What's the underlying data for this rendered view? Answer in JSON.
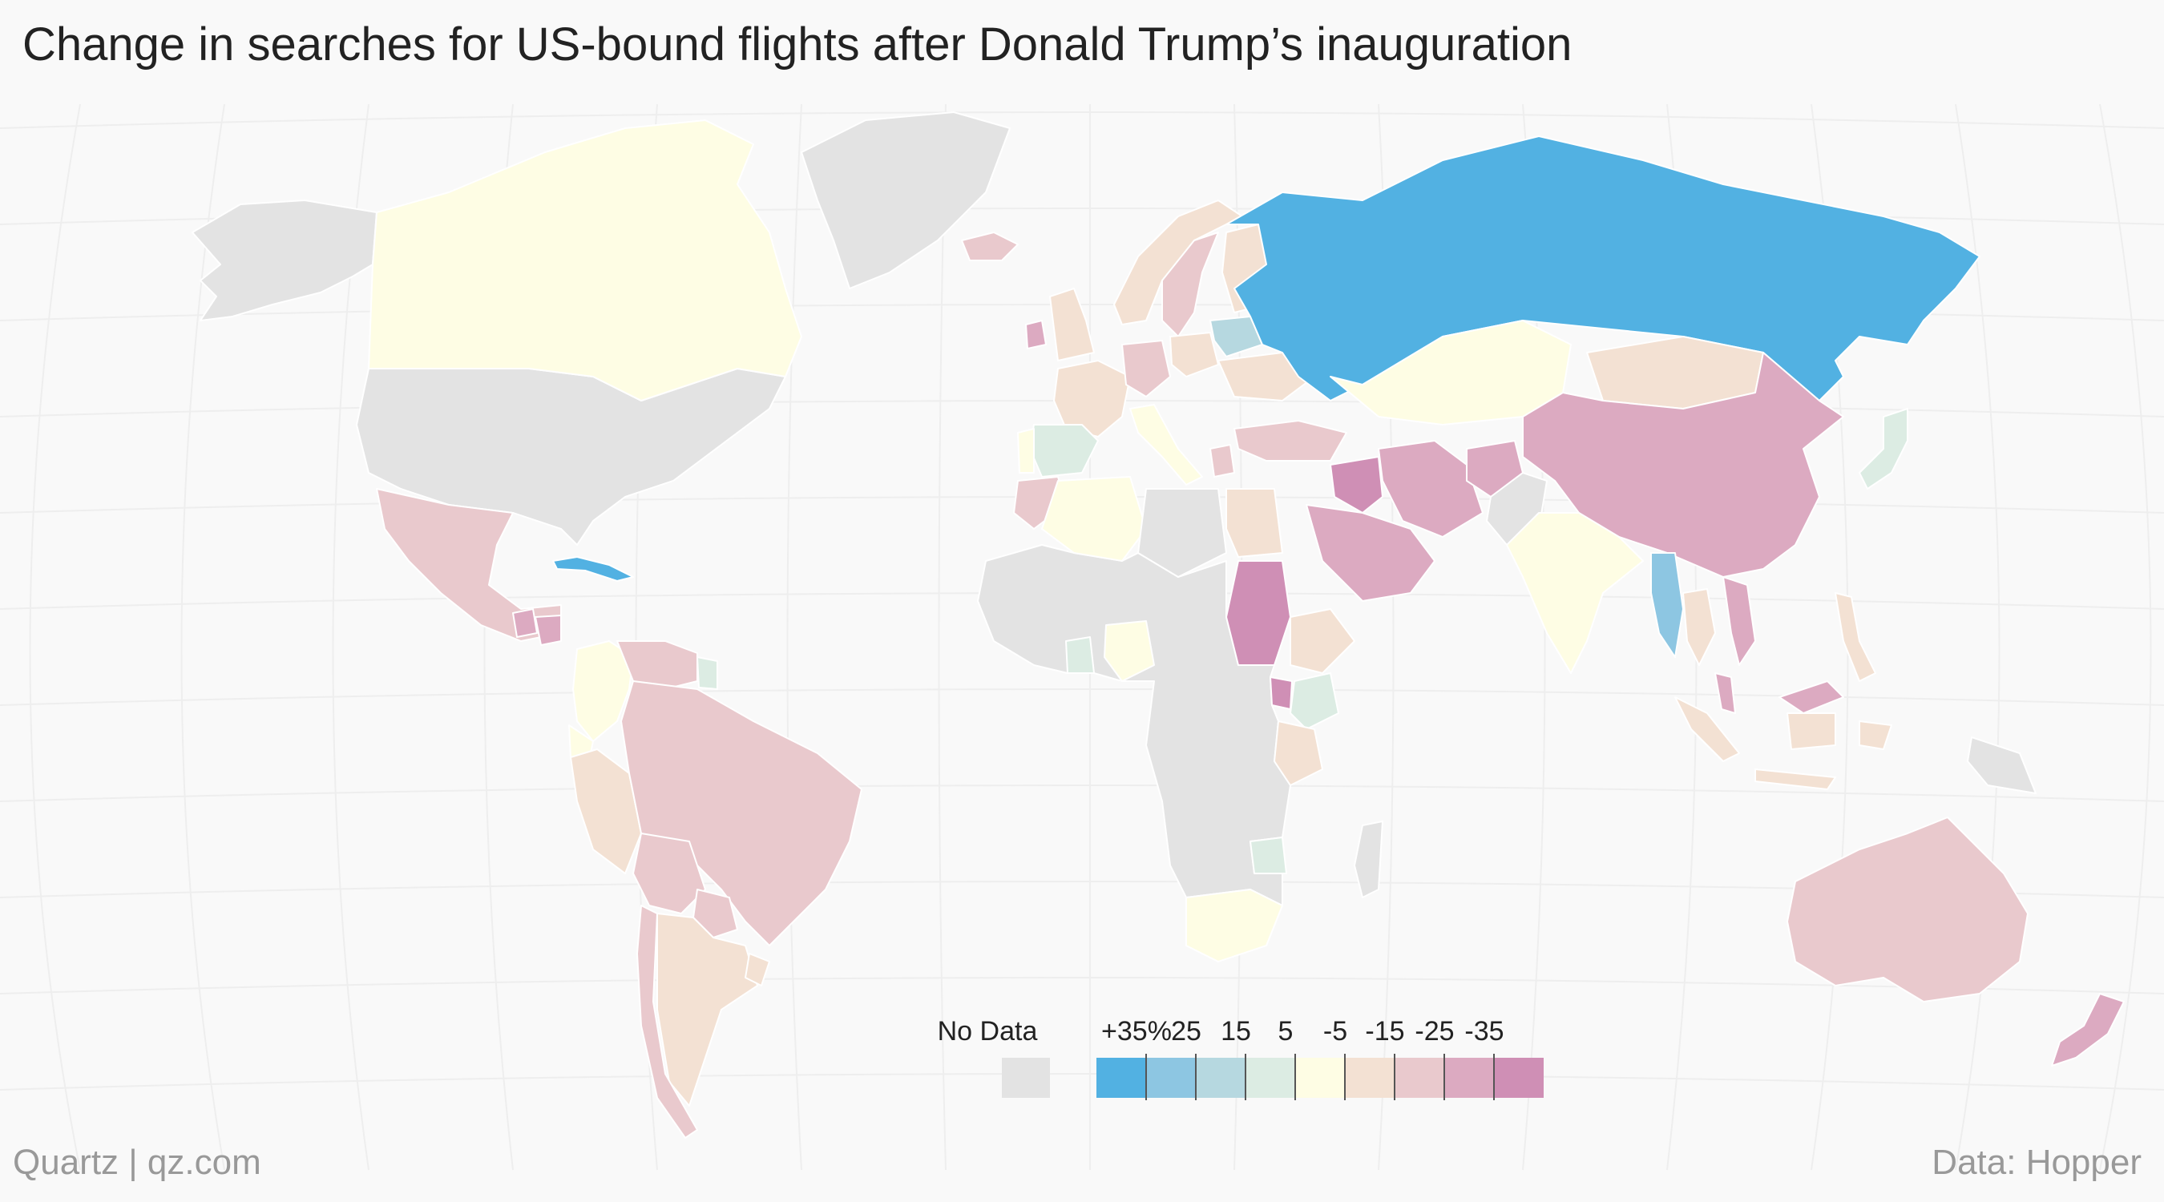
{
  "title": "Change in searches for US-bound flights after Donald Trump’s inauguration",
  "footer": {
    "left": "Quartz | qz.com",
    "right": "Data: Hopper"
  },
  "legend": {
    "no_data_label": "No Data",
    "no_data_color": "#e3e3e3",
    "bins": [
      {
        "label": "+35%",
        "color": "#52b1e2"
      },
      {
        "label": "25",
        "color": "#8dc6e2"
      },
      {
        "label": "15",
        "color": "#b6d8e0"
      },
      {
        "label": "5",
        "color": "#dcece3"
      },
      {
        "label": "-5",
        "color": "#fefde4"
      },
      {
        "label": "-15",
        "color": "#f3e1d3"
      },
      {
        "label": "-25",
        "color": "#e9c9cd"
      },
      {
        "label": "-35",
        "color": "#dcaac1"
      },
      {
        "label": "",
        "color": "#cf8fb5"
      }
    ]
  },
  "colors": {
    "background": "#f9f9f9",
    "ocean_grid": "#eeeeee",
    "border": "#ffffff"
  },
  "chart_data": {
    "type": "choropleth",
    "metric": "Change in searches for US-bound flights (%)",
    "regions": [
      {
        "name": "Alaska",
        "bin": "No Data"
      },
      {
        "name": "United States",
        "bin": "No Data"
      },
      {
        "name": "Greenland",
        "bin": "No Data"
      },
      {
        "name": "Canada",
        "bin": "-5"
      },
      {
        "name": "Mexico",
        "bin": "-25"
      },
      {
        "name": "Cuba",
        "bin": "+35%"
      },
      {
        "name": "Guatemala",
        "bin": "-35"
      },
      {
        "name": "Honduras",
        "bin": "-35"
      },
      {
        "name": "Colombia",
        "bin": "-5"
      },
      {
        "name": "Venezuela",
        "bin": "-25"
      },
      {
        "name": "Guyana",
        "bin": "5"
      },
      {
        "name": "Ecuador",
        "bin": "-5"
      },
      {
        "name": "Peru",
        "bin": "-15"
      },
      {
        "name": "Brazil",
        "bin": "-25"
      },
      {
        "name": "Bolivia",
        "bin": "-25"
      },
      {
        "name": "Paraguay",
        "bin": "-25"
      },
      {
        "name": "Argentina",
        "bin": "-15"
      },
      {
        "name": "Chile",
        "bin": "-25"
      },
      {
        "name": "Uruguay",
        "bin": "-15"
      },
      {
        "name": "Iceland",
        "bin": "-25"
      },
      {
        "name": "Ireland",
        "bin": "-35"
      },
      {
        "name": "United Kingdom",
        "bin": "-15"
      },
      {
        "name": "Norway",
        "bin": "-15"
      },
      {
        "name": "Sweden",
        "bin": "-25"
      },
      {
        "name": "Finland",
        "bin": "-15"
      },
      {
        "name": "France",
        "bin": "-15"
      },
      {
        "name": "Spain",
        "bin": "5"
      },
      {
        "name": "Portugal",
        "bin": "-5"
      },
      {
        "name": "Germany",
        "bin": "-25"
      },
      {
        "name": "Poland",
        "bin": "-15"
      },
      {
        "name": "Belarus",
        "bin": "15"
      },
      {
        "name": "Ukraine",
        "bin": "-15"
      },
      {
        "name": "Italy",
        "bin": "-5"
      },
      {
        "name": "Greece",
        "bin": "-25"
      },
      {
        "name": "Turkey",
        "bin": "-25"
      },
      {
        "name": "Russia",
        "bin": "+35%"
      },
      {
        "name": "Kazakhstan",
        "bin": "-5"
      },
      {
        "name": "Mongolia",
        "bin": "-15"
      },
      {
        "name": "China",
        "bin": "-35"
      },
      {
        "name": "Japan",
        "bin": "5"
      },
      {
        "name": "Iran",
        "bin": "-35"
      },
      {
        "name": "Iraq",
        "bin": ""
      },
      {
        "name": "Saudi Arabia",
        "bin": "-35"
      },
      {
        "name": "Afghanistan",
        "bin": "-35"
      },
      {
        "name": "Pakistan",
        "bin": "No Data"
      },
      {
        "name": "India",
        "bin": "-5"
      },
      {
        "name": "Myanmar",
        "bin": "25"
      },
      {
        "name": "Thailand",
        "bin": "-15"
      },
      {
        "name": "Vietnam",
        "bin": "-35"
      },
      {
        "name": "Malaysia",
        "bin": "-35"
      },
      {
        "name": "Indonesia",
        "bin": "-15"
      },
      {
        "name": "Philippines",
        "bin": "-15"
      },
      {
        "name": "Papua New Guinea",
        "bin": "No Data"
      },
      {
        "name": "Australia",
        "bin": "-25"
      },
      {
        "name": "New Zealand",
        "bin": "-35"
      },
      {
        "name": "Morocco",
        "bin": "-25"
      },
      {
        "name": "Algeria",
        "bin": "-5"
      },
      {
        "name": "Libya",
        "bin": "No Data"
      },
      {
        "name": "Egypt",
        "bin": "-15"
      },
      {
        "name": "Sudan",
        "bin": ""
      },
      {
        "name": "Ethiopia",
        "bin": "-15"
      },
      {
        "name": "Kenya",
        "bin": "5"
      },
      {
        "name": "Uganda",
        "bin": ""
      },
      {
        "name": "Tanzania",
        "bin": "-15"
      },
      {
        "name": "Nigeria",
        "bin": "-5"
      },
      {
        "name": "Ghana",
        "bin": "5"
      },
      {
        "name": "Zimbabwe",
        "bin": "5"
      },
      {
        "name": "South Africa",
        "bin": "-5"
      },
      {
        "name": "Madagascar",
        "bin": "No Data"
      },
      {
        "name": "Rest of Africa",
        "bin": "No Data"
      }
    ]
  }
}
